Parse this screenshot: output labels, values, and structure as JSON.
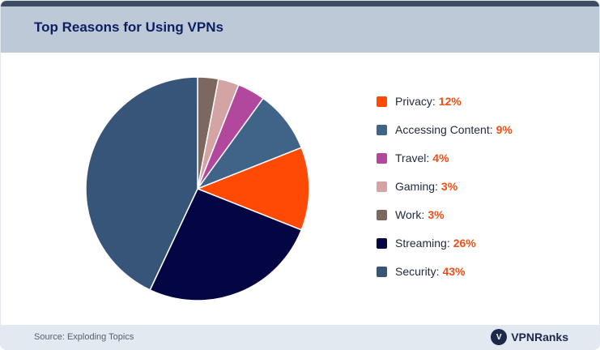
{
  "header": {
    "title": "Top Reasons for Using VPNs"
  },
  "footer": {
    "source": "Source: Exploding Topics",
    "brand_mark": "V",
    "brand_name": "VPNRanks"
  },
  "chart_data": {
    "type": "pie",
    "title": "Top Reasons for Using VPNs",
    "start_angle_deg": 0,
    "direction": "clockwise",
    "slices": [
      {
        "label": "Work",
        "value": 3,
        "display": "3%",
        "color": "#7d6860"
      },
      {
        "label": "Gaming",
        "value": 3,
        "display": "3%",
        "color": "#d4a3a3"
      },
      {
        "label": "Travel",
        "value": 4,
        "display": "4%",
        "color": "#b1489e"
      },
      {
        "label": "Accessing Content",
        "value": 9,
        "display": "9%",
        "color": "#3f6487"
      },
      {
        "label": "Privacy",
        "value": 12,
        "display": "12%",
        "color": "#ff4a06"
      },
      {
        "label": "Streaming",
        "value": 26,
        "display": "26%",
        "color": "#040643"
      },
      {
        "label": "Security",
        "value": 43,
        "display": "43%",
        "color": "#375579"
      }
    ],
    "legend": {
      "placement": "right",
      "order": [
        "Privacy",
        "Accessing Content",
        "Travel",
        "Gaming",
        "Work",
        "Streaming",
        "Security"
      ]
    }
  }
}
